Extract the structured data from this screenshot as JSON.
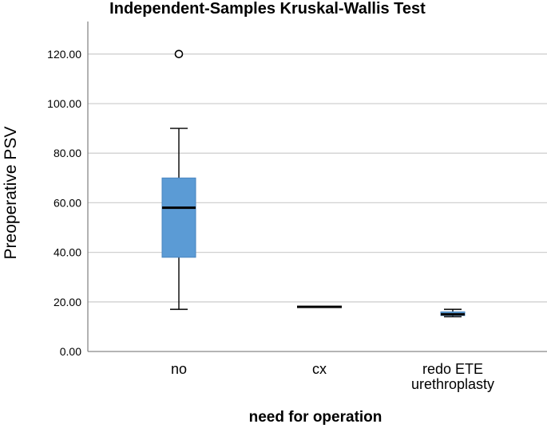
{
  "chart_data": {
    "type": "boxplot",
    "title": "Independent-Samples Kruskal-Wallis Test",
    "xlabel": "need for operation",
    "ylabel": "Preoperative PSV",
    "ylim": [
      0,
      130
    ],
    "yticks": [
      "0.00",
      "20.00",
      "40.00",
      "60.00",
      "80.00",
      "100.00",
      "120.00"
    ],
    "grid": "horizontal",
    "box_color": "#5b9bd5",
    "categories": [
      {
        "label_lines": [
          "no"
        ],
        "whisker_low": 17,
        "q1": 38,
        "median": 58,
        "q3": 70,
        "whisker_high": 90,
        "outliers": [
          120
        ]
      },
      {
        "label_lines": [
          "cx"
        ],
        "whisker_low": 18,
        "q1": 18,
        "median": 18,
        "q3": 18,
        "whisker_high": 18,
        "outliers": []
      },
      {
        "label_lines": [
          "redo ETE",
          "urethroplasty"
        ],
        "whisker_low": 14,
        "q1": 14.5,
        "median": 15,
        "q3": 16,
        "whisker_high": 17,
        "outliers": []
      }
    ]
  }
}
